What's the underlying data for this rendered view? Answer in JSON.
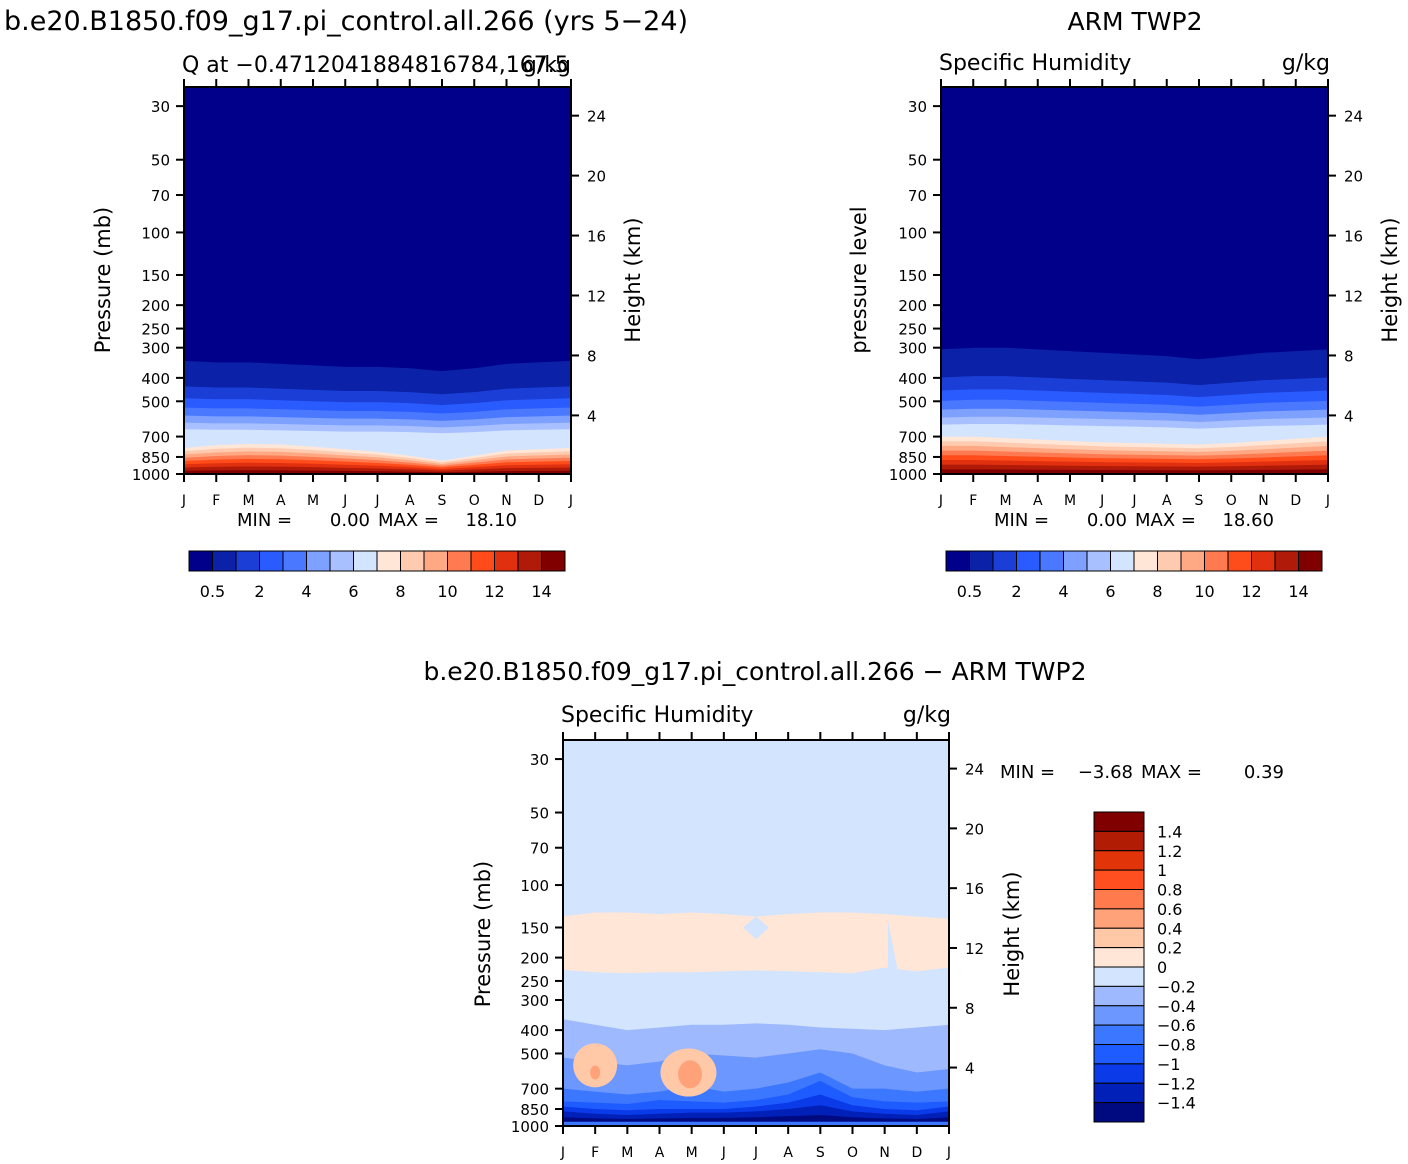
{
  "page_title": "b.e20.B1850.f09_g17.pi_control.all.266 (yrs 5-24)",
  "months": [
    "J",
    "F",
    "M",
    "A",
    "M",
    "J",
    "J",
    "A",
    "S",
    "O",
    "N",
    "D",
    "J"
  ],
  "colors": {
    "main": [
      "#00008b",
      "#0a21a8",
      "#1b3fd6",
      "#2a5bff",
      "#4a78ff",
      "#7ea0ff",
      "#a8c0ff",
      "#d3e4ff",
      "#ffe6d6",
      "#ffcbb0",
      "#ffa883",
      "#ff7a50",
      "#ff4c1a",
      "#e03010",
      "#b01a08",
      "#800000"
    ],
    "diff": [
      "#000a80",
      "#0020b8",
      "#0b3be8",
      "#1f5cff",
      "#3c78ff",
      "#6c97ff",
      "#9fb9ff",
      "#d3e4ff",
      "#ffe6d6",
      "#ffc9a8",
      "#ffa27a",
      "#ff7a4c",
      "#ff4f20",
      "#e23409",
      "#b01c04",
      "#800000"
    ]
  },
  "panels": [
    {
      "id": "model",
      "top_title": "b.e20.B1850.f09_g17.pi_control.all.266 (yrs 5−24)",
      "left_title": "Q  at  −0.4712041884816784,167.5",
      "units": "g/kg",
      "ylabel": "Pressure  (mb)",
      "y2label": "Height  (km)",
      "min_label": "MIN  =",
      "min_value": "0.00",
      "max_label": "MAX  =",
      "max_value": "18.10",
      "colorbar_labels": [
        "0.5",
        "2",
        "4",
        "6",
        "8",
        "10",
        "12",
        "14"
      ]
    },
    {
      "id": "obs",
      "top_title": "ARM  TWP2",
      "left_title": "Specific  Humidity",
      "units": "g/kg",
      "ylabel": "pressure  level",
      "y2label": "Height  (km)",
      "min_label": "MIN  =",
      "min_value": "0.00",
      "max_label": "MAX  =",
      "max_value": "18.60",
      "colorbar_labels": [
        "0.5",
        "2",
        "4",
        "6",
        "8",
        "10",
        "12",
        "14"
      ]
    },
    {
      "id": "diff",
      "top_title": "b.e20.B1850.f09_g17.pi_control.all.266  −  ARM  TWP2",
      "left_title": "Specific  Humidity",
      "units": "g/kg",
      "ylabel": "Pressure  (mb)",
      "y2label": "Height  (km)",
      "min_label": "MIN  =",
      "min_value": "−3.68",
      "max_label": "MAX  =",
      "max_value": "0.39",
      "colorbar_labels": [
        "1.4",
        "1.2",
        "1",
        "0.8",
        "0.6",
        "0.4",
        "0.2",
        "0",
        "−0.2",
        "−0.4",
        "−0.6",
        "−0.8",
        "−1",
        "−1.2",
        "−1.4"
      ]
    }
  ],
  "chart_data": [
    {
      "type": "heatmap",
      "title": "Q  at  −0.4712041884816784,167.5",
      "x": [
        "J",
        "F",
        "M",
        "A",
        "M",
        "J",
        "J",
        "A",
        "S",
        "O",
        "N",
        "D",
        "J"
      ],
      "ylabel": "Pressure (mb)",
      "yticks": [
        30,
        50,
        70,
        100,
        150,
        200,
        250,
        300,
        400,
        500,
        700,
        850,
        1000
      ],
      "y2label": "Height (km)",
      "y2ticks": [
        4,
        8,
        12,
        16,
        20,
        24
      ],
      "yscale": "log",
      "ylim": [
        1000,
        25
      ],
      "levels": [
        0.5,
        1,
        2,
        3,
        4,
        5,
        6,
        7,
        8,
        9,
        10,
        11,
        12,
        13,
        14
      ],
      "min": 0.0,
      "max": 18.1,
      "dry_top_pressure_by_month": [
        340,
        345,
        345,
        350,
        355,
        360,
        360,
        365,
        375,
        365,
        350,
        345,
        340
      ],
      "moist_boundary_pressure_by_month": [
        780,
        760,
        750,
        755,
        770,
        790,
        810,
        840,
        880,
        840,
        800,
        790,
        780
      ]
    },
    {
      "type": "heatmap",
      "title": "Specific  Humidity",
      "x": [
        "J",
        "F",
        "M",
        "A",
        "M",
        "J",
        "J",
        "A",
        "S",
        "O",
        "N",
        "D",
        "J"
      ],
      "ylabel": "pressure level",
      "yticks": [
        30,
        50,
        70,
        100,
        150,
        200,
        250,
        300,
        400,
        500,
        700,
        850,
        1000
      ],
      "y2label": "Height (km)",
      "y2ticks": [
        4,
        8,
        12,
        16,
        20,
        24
      ],
      "yscale": "log",
      "ylim": [
        1000,
        25
      ],
      "levels": [
        0.5,
        1,
        2,
        3,
        4,
        5,
        6,
        7,
        8,
        9,
        10,
        11,
        12,
        13,
        14
      ],
      "min": 0.0,
      "max": 18.6,
      "dry_top_pressure_by_month": [
        305,
        300,
        300,
        305,
        310,
        315,
        320,
        325,
        335,
        325,
        315,
        310,
        305
      ],
      "moist_boundary_pressure_by_month": [
        700,
        700,
        710,
        720,
        730,
        740,
        745,
        750,
        755,
        745,
        730,
        715,
        700
      ]
    },
    {
      "type": "heatmap",
      "title": "Specific  Humidity",
      "x": [
        "J",
        "F",
        "M",
        "A",
        "M",
        "J",
        "J",
        "A",
        "S",
        "O",
        "N",
        "D",
        "J"
      ],
      "ylabel": "Pressure (mb)",
      "yticks": [
        30,
        50,
        70,
        100,
        150,
        200,
        250,
        300,
        400,
        500,
        700,
        850,
        1000
      ],
      "y2label": "Height (km)",
      "y2ticks": [
        4,
        8,
        12,
        16,
        20,
        24
      ],
      "yscale": "log",
      "ylim": [
        1000,
        25
      ],
      "levels": [
        -1.4,
        -1.2,
        -1,
        -0.8,
        -0.6,
        -0.4,
        -0.2,
        0,
        0.2,
        0.4,
        0.6,
        0.8,
        1,
        1.2,
        1.4
      ],
      "min": -3.68,
      "max": 0.39
    }
  ]
}
